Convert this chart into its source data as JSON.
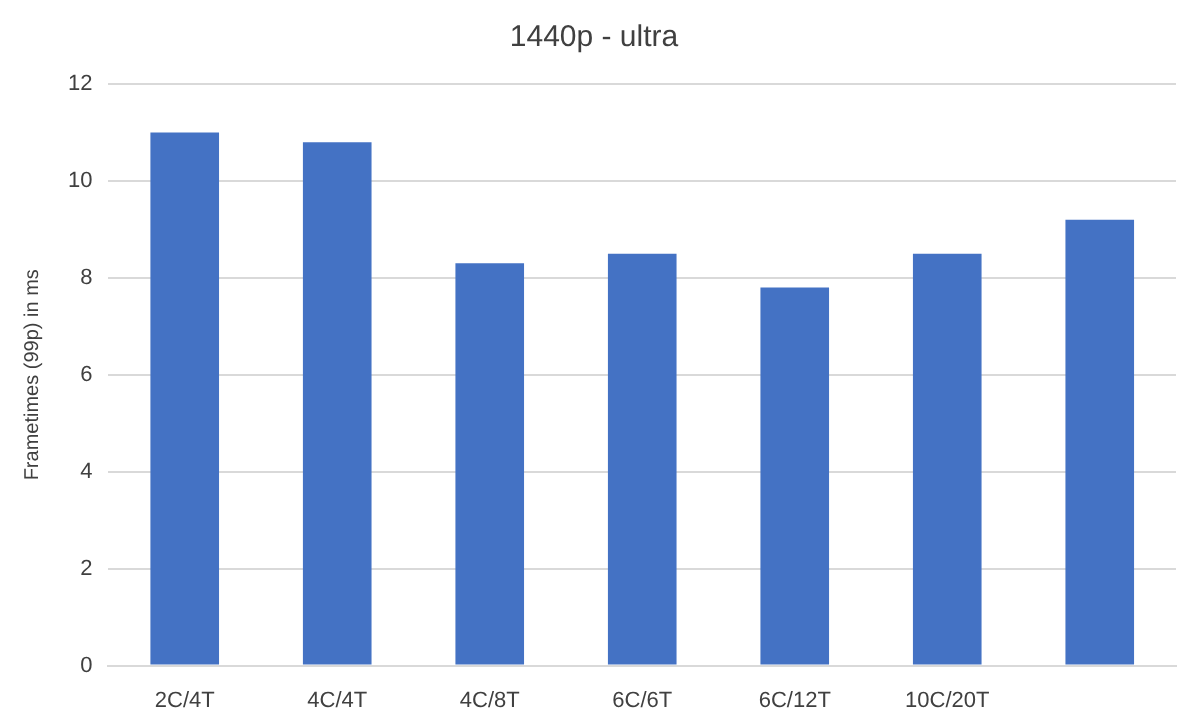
{
  "chart_data": {
    "type": "bar",
    "title": "1440p - ultra",
    "ylabel": "Frametimes (99p) in ms",
    "categories": [
      "2C/4T",
      "4C/4T",
      "4C/8T",
      "6C/6T",
      "6C/12T",
      "10C/20T",
      null
    ],
    "values": [
      11.0,
      10.8,
      8.3,
      8.5,
      7.8,
      8.5,
      9.2
    ],
    "color": "#4472c4",
    "ylim": [
      0,
      12
    ],
    "yticks": [
      0,
      2,
      4,
      6,
      8,
      10,
      12
    ],
    "grid": "y"
  }
}
